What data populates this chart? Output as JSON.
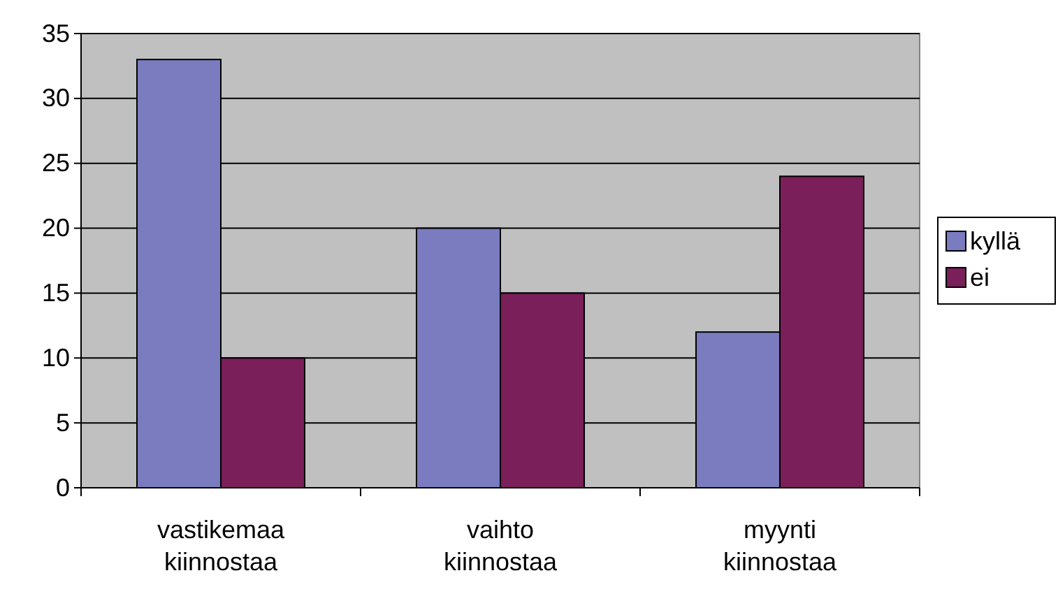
{
  "chart_data": {
    "type": "bar",
    "categories": [
      "vastikemaa kiinnostaa",
      "vaihto kiinnostaa",
      "myynti kiinnostaa"
    ],
    "series": [
      {
        "name": "kyllä",
        "color": "#7b7bc0",
        "values": [
          33,
          20,
          12
        ]
      },
      {
        "name": "ei",
        "color": "#7a1f5a",
        "values": [
          10,
          15,
          24
        ]
      }
    ],
    "ylim": [
      0,
      35
    ],
    "yticks": [
      0,
      5,
      10,
      15,
      20,
      25,
      30,
      35
    ],
    "grid": "y",
    "legend": "right"
  }
}
